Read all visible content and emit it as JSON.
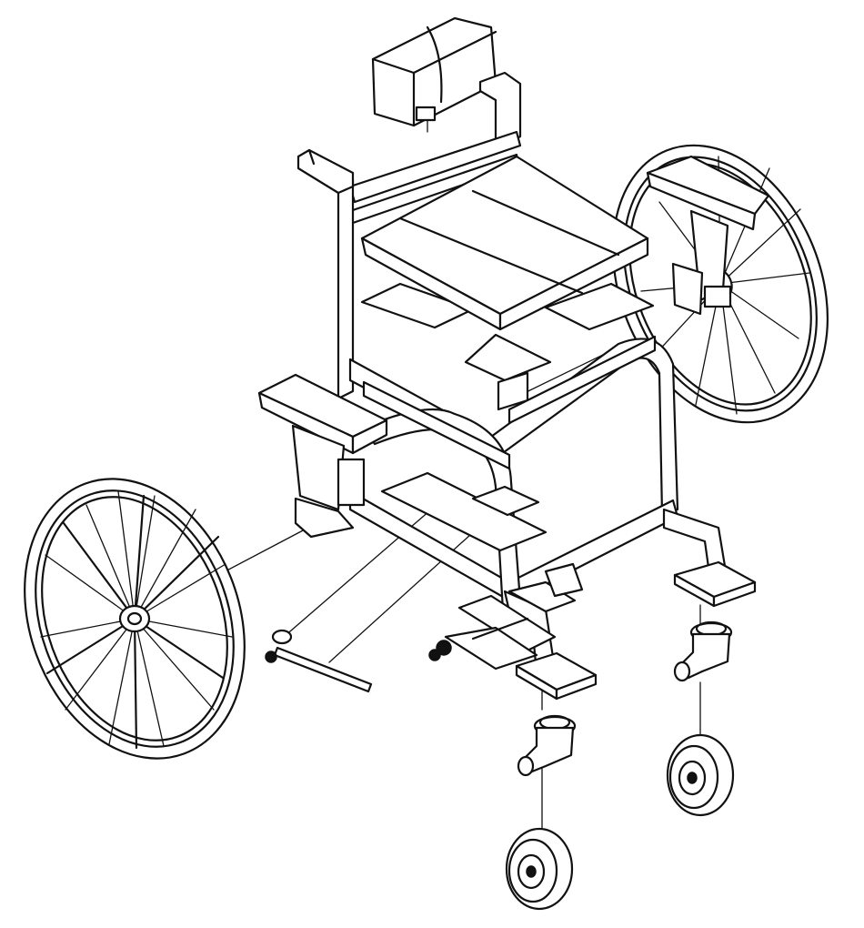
{
  "drawing": {
    "kind": "exploded isometric line drawing",
    "colors": {
      "stroke": "#111111",
      "background": "#ffffff"
    },
    "parts": [
      "headrest",
      "backrest-frame",
      "push-handle",
      "seat-cushion",
      "seat-plates",
      "left-armrest",
      "right-armrest",
      "main-frame",
      "rear-wheel-left",
      "rear-wheel-right",
      "footrest-plate",
      "lift-mechanism",
      "crank-handle",
      "front-foot-pads",
      "caster-forks",
      "caster-wheels"
    ]
  }
}
